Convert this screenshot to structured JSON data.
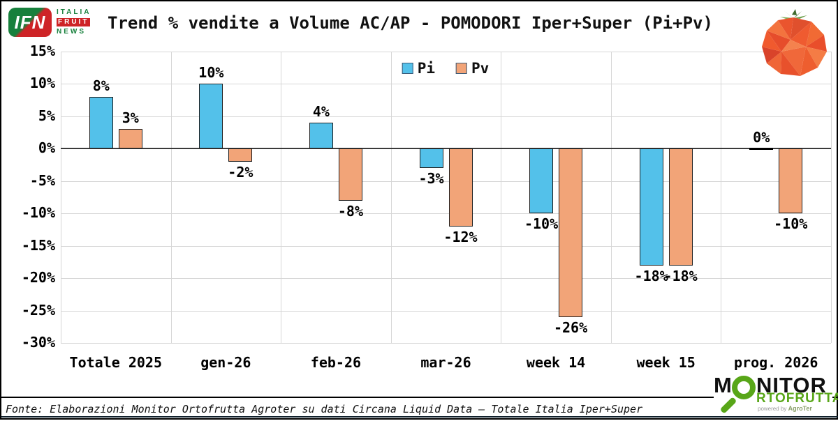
{
  "header": {
    "ifn_logo": {
      "acronym": "IFN",
      "line1": "ITALIA",
      "line2": "FRUIT",
      "line3": "NEWS"
    },
    "title": "Trend % vendite a Volume AC/AP - POMODORI Iper+Super (Pi+Pv)"
  },
  "chart_data": {
    "type": "bar",
    "title": "Trend % vendite a Volume AC/AP - POMODORI Iper+Super (Pi+Pv)",
    "categories": [
      "Totale 2025",
      "gen-26",
      "feb-26",
      "mar-26",
      "week 14",
      "week 15",
      "prog. 2026"
    ],
    "series": [
      {
        "name": "Pi",
        "color": "#53C1EA",
        "values": [
          8,
          10,
          4,
          -3,
          -10,
          -18,
          0
        ],
        "labels": [
          "8%",
          "10%",
          "4%",
          "-3%",
          "-10%",
          "-18%",
          "0%"
        ]
      },
      {
        "name": "Pv",
        "color": "#F2A478",
        "values": [
          3,
          -2,
          -8,
          -12,
          -26,
          -18,
          -10
        ],
        "labels": [
          "3%",
          "-2%",
          "-8%",
          "-12%",
          "-26%",
          "-18%",
          "-10%"
        ]
      }
    ],
    "ylim": [
      -30,
      15
    ],
    "ytick_step": 5,
    "ytick_labels": [
      "15%",
      "10%",
      "5%",
      "0%",
      "-5%",
      "-10%",
      "-15%",
      "-20%",
      "-25%",
      "-30%"
    ],
    "ytick_values": [
      15,
      10,
      5,
      0,
      -5,
      -10,
      -15,
      -20,
      -25,
      -30
    ],
    "grid": true,
    "legend_position": "top-center"
  },
  "footer": {
    "source": "Fonte: Elaborazioni Monitor Ortofrutta Agroter su dati Circana Liquid Data – Totale Italia Iper+Super"
  },
  "monitor_logo": {
    "part1": "M",
    "part2": "NITOR",
    "part3": "RTOFRUTTA",
    "powered_by": "powered by",
    "brand": "AgroTer",
    "green": "#58A618"
  },
  "icons": {
    "tomato": "low-poly-tomato-illustration",
    "magnifier": "green-magnifying-glass"
  }
}
